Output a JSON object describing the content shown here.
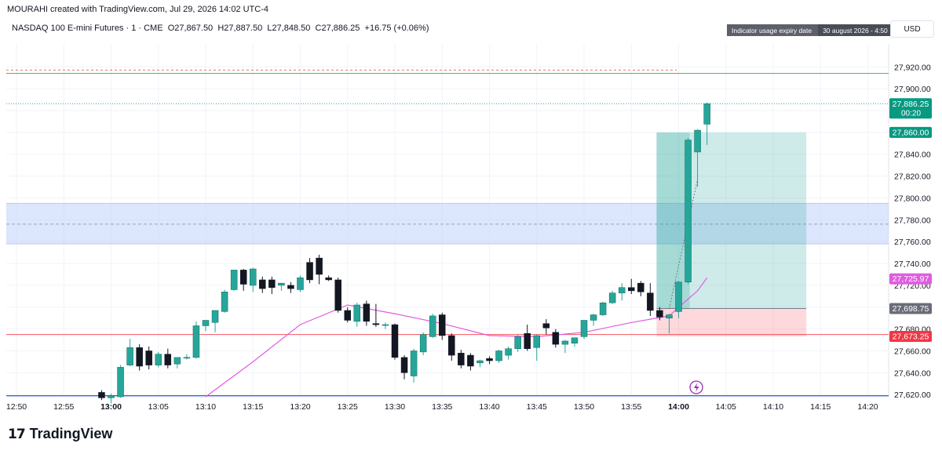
{
  "header": {
    "created_by": "MOURAHI created with TradingView.com, Jul 29, 2026 14:02 UTC-4",
    "symbol_legend": "NASDAQ 100 E-mini Futures · 1 · CME",
    "ohlc": {
      "o": "O27,867.50",
      "h": "H27,887.50",
      "l": "L27,848.50",
      "c": "C27,886.25",
      "change": "+16.75 (+0.06%)"
    }
  },
  "badge": {
    "label": "Indicator usage expiry date",
    "value": "30 august 2026 - 4:50"
  },
  "currency": "USD",
  "footer": {
    "brand": "TradingView",
    "brand_mark": "17"
  },
  "icons": {
    "flash": "lightning-icon"
  },
  "colors": {
    "up": "#26a69a",
    "down": "#131722",
    "ma": "#e05ce0",
    "stop": "#f7525f",
    "target": "#26a69a",
    "zone": "#c9d8fb",
    "green_line": "#4caf50",
    "blue_line": "#2962ff"
  },
  "chart_data": {
    "type": "candlestick",
    "x_tick_labels": [
      "12:50",
      "12:55",
      "13:00",
      "13:05",
      "13:10",
      "13:15",
      "13:20",
      "13:25",
      "13:30",
      "13:35",
      "13:40",
      "13:45",
      "13:50",
      "13:55",
      "14:00",
      "14:05",
      "14:10",
      "14:15",
      "14:20"
    ],
    "x_tick_bold": [
      "13:00",
      "14:00"
    ],
    "y_tick_labels": [
      "27,920.00",
      "27,900.00",
      "27,880.00",
      "27,860.00",
      "27,840.00",
      "27,820.00",
      "27,800.00",
      "27,780.00",
      "27,760.00",
      "27,740.00",
      "27,720.00",
      "27,700.00",
      "27,680.00",
      "27,660.00",
      "27,640.00",
      "27,620.00"
    ],
    "ylim": [
      27618,
      27941
    ],
    "candles": [
      {
        "t": "12:59",
        "o": 27622,
        "h": 27624,
        "l": 27615,
        "c": 27617
      },
      {
        "t": "13:00",
        "o": 27617,
        "h": 27621,
        "l": 27612,
        "c": 27619
      },
      {
        "t": "13:01",
        "o": 27618,
        "h": 27647,
        "l": 27617,
        "c": 27645
      },
      {
        "t": "13:02",
        "o": 27647,
        "h": 27671,
        "l": 27646,
        "c": 27663
      },
      {
        "t": "13:03",
        "o": 27663,
        "h": 27666,
        "l": 27642,
        "c": 27646
      },
      {
        "t": "13:04",
        "o": 27660,
        "h": 27664,
        "l": 27643,
        "c": 27647
      },
      {
        "t": "13:05",
        "o": 27647,
        "h": 27659,
        "l": 27645,
        "c": 27657
      },
      {
        "t": "13:06",
        "o": 27657,
        "h": 27662,
        "l": 27644,
        "c": 27647
      },
      {
        "t": "13:07",
        "o": 27648,
        "h": 27654,
        "l": 27644,
        "c": 27654
      },
      {
        "t": "13:08",
        "o": 27654,
        "h": 27657,
        "l": 27652,
        "c": 27654
      },
      {
        "t": "13:09",
        "o": 27654,
        "h": 27687,
        "l": 27653,
        "c": 27683
      },
      {
        "t": "13:10",
        "o": 27683,
        "h": 27688,
        "l": 27678,
        "c": 27688
      },
      {
        "t": "13:11",
        "o": 27686,
        "h": 27696,
        "l": 27677,
        "c": 27697
      },
      {
        "t": "13:12",
        "o": 27696,
        "h": 27716,
        "l": 27695,
        "c": 27714
      },
      {
        "t": "13:13",
        "o": 27716,
        "h": 27732,
        "l": 27715,
        "c": 27734
      },
      {
        "t": "13:14",
        "o": 27734,
        "h": 27735,
        "l": 27715,
        "c": 27721
      },
      {
        "t": "13:15",
        "o": 27720,
        "h": 27736,
        "l": 27714,
        "c": 27735
      },
      {
        "t": "13:16",
        "o": 27725,
        "h": 27728,
        "l": 27713,
        "c": 27717
      },
      {
        "t": "13:17",
        "o": 27725,
        "h": 27728,
        "l": 27712,
        "c": 27718
      },
      {
        "t": "13:18",
        "o": 27720,
        "h": 27722,
        "l": 27715,
        "c": 27722
      },
      {
        "t": "13:19",
        "o": 27720,
        "h": 27723,
        "l": 27713,
        "c": 27717
      },
      {
        "t": "13:20",
        "o": 27716,
        "h": 27729,
        "l": 27714,
        "c": 27727
      },
      {
        "t": "13:21",
        "o": 27741,
        "h": 27745,
        "l": 27722,
        "c": 27725
      },
      {
        "t": "13:22",
        "o": 27745,
        "h": 27748,
        "l": 27721,
        "c": 27730
      },
      {
        "t": "13:23",
        "o": 27727,
        "h": 27729,
        "l": 27724,
        "c": 27725
      },
      {
        "t": "13:24",
        "o": 27725,
        "h": 27727,
        "l": 27695,
        "c": 27697
      },
      {
        "t": "13:25",
        "o": 27697,
        "h": 27700,
        "l": 27686,
        "c": 27688
      },
      {
        "t": "13:26",
        "o": 27687,
        "h": 27704,
        "l": 27682,
        "c": 27702
      },
      {
        "t": "13:27",
        "o": 27703,
        "h": 27706,
        "l": 27683,
        "c": 27687
      },
      {
        "t": "13:28",
        "o": 27685,
        "h": 27703,
        "l": 27682,
        "c": 27684
      },
      {
        "t": "13:29",
        "o": 27684,
        "h": 27686,
        "l": 27680,
        "c": 27684
      },
      {
        "t": "13:30",
        "o": 27684,
        "h": 27685,
        "l": 27652,
        "c": 27654
      },
      {
        "t": "13:31",
        "o": 27654,
        "h": 27656,
        "l": 27634,
        "c": 27640
      },
      {
        "t": "13:32",
        "o": 27637,
        "h": 27662,
        "l": 27631,
        "c": 27660
      },
      {
        "t": "13:33",
        "o": 27659,
        "h": 27677,
        "l": 27656,
        "c": 27675
      },
      {
        "t": "13:34",
        "o": 27673,
        "h": 27694,
        "l": 27672,
        "c": 27692
      },
      {
        "t": "13:35",
        "o": 27693,
        "h": 27695,
        "l": 27670,
        "c": 27674
      },
      {
        "t": "13:36",
        "o": 27674,
        "h": 27676,
        "l": 27651,
        "c": 27656
      },
      {
        "t": "13:37",
        "o": 27658,
        "h": 27661,
        "l": 27644,
        "c": 27647
      },
      {
        "t": "13:38",
        "o": 27656,
        "h": 27658,
        "l": 27642,
        "c": 27646
      },
      {
        "t": "13:39",
        "o": 27649,
        "h": 27652,
        "l": 27645,
        "c": 27651
      },
      {
        "t": "13:40",
        "o": 27653,
        "h": 27655,
        "l": 27648,
        "c": 27651
      },
      {
        "t": "13:41",
        "o": 27651,
        "h": 27661,
        "l": 27649,
        "c": 27660
      },
      {
        "t": "13:42",
        "o": 27656,
        "h": 27664,
        "l": 27652,
        "c": 27662
      },
      {
        "t": "13:43",
        "o": 27662,
        "h": 27675,
        "l": 27659,
        "c": 27673
      },
      {
        "t": "13:44",
        "o": 27676,
        "h": 27684,
        "l": 27660,
        "c": 27662
      },
      {
        "t": "13:45",
        "o": 27663,
        "h": 27675,
        "l": 27651,
        "c": 27674
      },
      {
        "t": "13:46",
        "o": 27685,
        "h": 27689,
        "l": 27675,
        "c": 27681
      },
      {
        "t": "13:47",
        "o": 27677,
        "h": 27680,
        "l": 27663,
        "c": 27666
      },
      {
        "t": "13:48",
        "o": 27666,
        "h": 27670,
        "l": 27658,
        "c": 27669
      },
      {
        "t": "13:49",
        "o": 27667,
        "h": 27672,
        "l": 27664,
        "c": 27672
      },
      {
        "t": "13:50",
        "o": 27673,
        "h": 27688,
        "l": 27671,
        "c": 27688
      },
      {
        "t": "13:51",
        "o": 27688,
        "h": 27694,
        "l": 27683,
        "c": 27693
      },
      {
        "t": "13:52",
        "o": 27693,
        "h": 27705,
        "l": 27692,
        "c": 27704
      },
      {
        "t": "13:53",
        "o": 27704,
        "h": 27715,
        "l": 27703,
        "c": 27713
      },
      {
        "t": "13:54",
        "o": 27713,
        "h": 27722,
        "l": 27706,
        "c": 27718
      },
      {
        "t": "13:55",
        "o": 27718,
        "h": 27726,
        "l": 27712,
        "c": 27715
      },
      {
        "t": "13:56",
        "o": 27722,
        "h": 27724,
        "l": 27710,
        "c": 27714
      },
      {
        "t": "13:57",
        "o": 27713,
        "h": 27722,
        "l": 27692,
        "c": 27697
      },
      {
        "t": "13:58",
        "o": 27697,
        "h": 27700,
        "l": 27688,
        "c": 27691
      },
      {
        "t": "13:59",
        "o": 27690,
        "h": 27694,
        "l": 27676,
        "c": 27693
      },
      {
        "t": "14:00",
        "o": 27696,
        "h": 27724,
        "l": 27690,
        "c": 27723
      },
      {
        "t": "14:01",
        "o": 27723,
        "h": 27855,
        "l": 27721,
        "c": 27853
      },
      {
        "t": "14:02",
        "o": 27842,
        "h": 27863,
        "l": 27810,
        "c": 27862
      },
      {
        "t": "14:03",
        "o": 27867.5,
        "h": 27887.5,
        "l": 27848.5,
        "c": 27886.25
      }
    ],
    "moving_average": [
      {
        "t": "13:10",
        "v": 27618
      },
      {
        "t": "13:15",
        "v": 27650
      },
      {
        "t": "13:20",
        "v": 27684
      },
      {
        "t": "13:25",
        "v": 27702
      },
      {
        "t": "13:30",
        "v": 27694
      },
      {
        "t": "13:35",
        "v": 27685
      },
      {
        "t": "13:40",
        "v": 27674
      },
      {
        "t": "13:45",
        "v": 27673
      },
      {
        "t": "13:50",
        "v": 27677
      },
      {
        "t": "13:55",
        "v": 27686
      },
      {
        "t": "13:59",
        "v": 27692
      },
      {
        "t": "14:00",
        "v": 27700
      },
      {
        "t": "14:02",
        "v": 27715
      },
      {
        "t": "14:03",
        "v": 27727
      }
    ],
    "levels": {
      "green_line": 27914,
      "dashed_red": 27917,
      "zone_top": 27795,
      "zone_bottom": 27758,
      "zone_mid": 27776,
      "stop_line": 27675,
      "bottom_line": 27619,
      "current_price_line": 27886.25
    },
    "position": {
      "start": "13:58",
      "end": "14:13",
      "entry": 27698.75,
      "target": 27860.0,
      "stop": 27673.25
    },
    "price_labels": [
      {
        "text": "27,886.25",
        "sub": "00:20",
        "v": 27886.25,
        "bg": "#089981",
        "fg": "#ffffff"
      },
      {
        "text": "27,860.00",
        "v": 27860.0,
        "bg": "#089981",
        "fg": "#ffffff"
      },
      {
        "text": "27,725.97",
        "v": 27725.97,
        "bg": "#e05ce0",
        "fg": "#ffffff"
      },
      {
        "text": "27,698.75",
        "v": 27698.75,
        "bg": "#6a6d78",
        "fg": "#ffffff"
      },
      {
        "text": "27,673.25",
        "v": 27673.25,
        "bg": "#f23645",
        "fg": "#ffffff"
      }
    ]
  }
}
